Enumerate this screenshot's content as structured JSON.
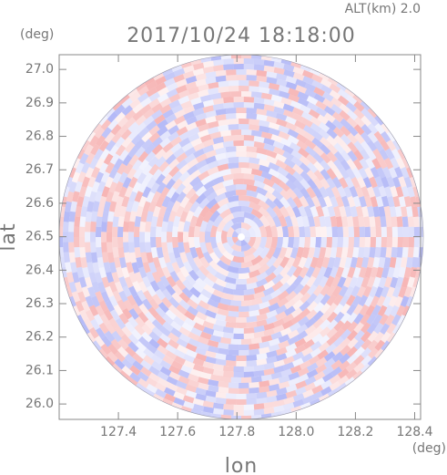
{
  "chart_data": {
    "type": "image",
    "title": "2017/10/24 18:18:00",
    "subtitle": "ALT(km) 2.0",
    "y_label": "lat",
    "y_unit": "(deg)",
    "x_label": "lon",
    "x_unit": "(deg)",
    "xlim": [
      127.2,
      128.42
    ],
    "xticks": [
      127.4,
      127.6,
      127.8,
      {
        "value": 128.0,
        "label": "128.0"
      },
      128.2,
      128.4
    ],
    "ylim": [
      25.954,
      27.044
    ],
    "yticks": [
      {
        "value": 26.0,
        "label": "26.0"
      },
      26.1,
      26.2,
      26.3,
      26.4,
      26.5,
      26.6,
      26.7,
      26.8,
      26.9,
      {
        "value": 27.0,
        "label": "27.0"
      }
    ],
    "colors": [
      "#f28c8c",
      "#8c94f2"
    ]
  }
}
